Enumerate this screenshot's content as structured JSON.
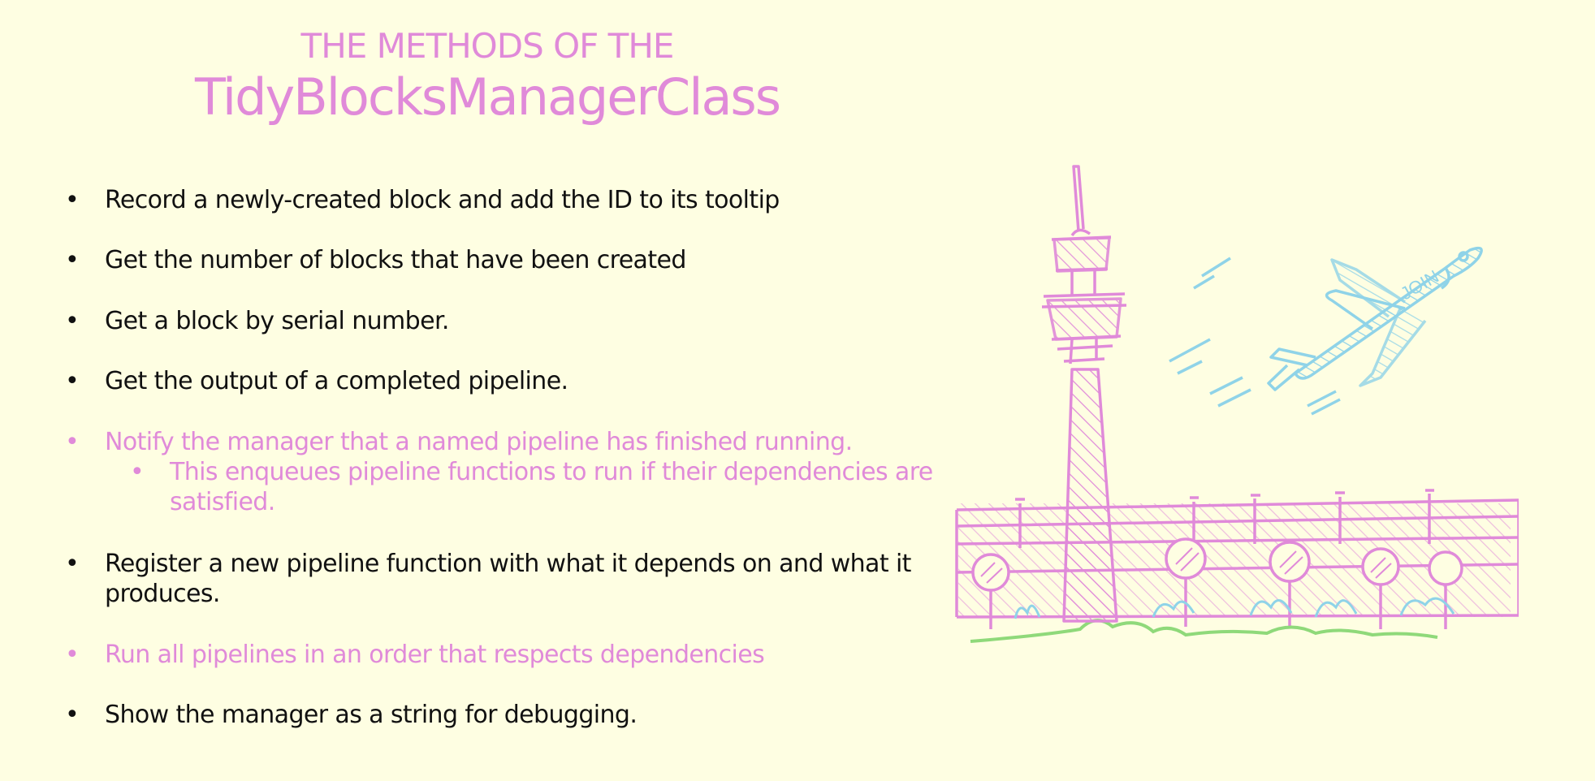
{
  "title": {
    "line1": "THE METHODS OF THE",
    "line2": "TidyBlocksManagerClass"
  },
  "bullets": [
    {
      "text": "Record a newly-created block and add the ID to its tooltip",
      "highlight": false
    },
    {
      "text": "Get the number of blocks that have been created",
      "highlight": false
    },
    {
      "text": "Get a block by serial number.",
      "highlight": false
    },
    {
      "text": "Get the output of a completed pipeline.",
      "highlight": false
    },
    {
      "text": "Notify the manager that a named pipeline has finished running.",
      "highlight": true,
      "sub": "This enqueues pipeline functions to run if their dependencies are satisfied."
    },
    {
      "text": "Register a new pipeline function with what it depends on and what it produces.",
      "highlight": false
    },
    {
      "text": "Run all pipelines in an order that respects dependencies",
      "highlight": true
    },
    {
      "text": "Show the manager as a string for debugging.",
      "highlight": false
    }
  ],
  "bullet_glyph": "•",
  "illustration": {
    "plane_label": "JOIN"
  },
  "colors": {
    "background": "#fefee2",
    "accent_pink": "#e08ad9",
    "text": "#111111",
    "sky_blue": "#8fd3e8",
    "grass_green": "#8fd97a"
  }
}
